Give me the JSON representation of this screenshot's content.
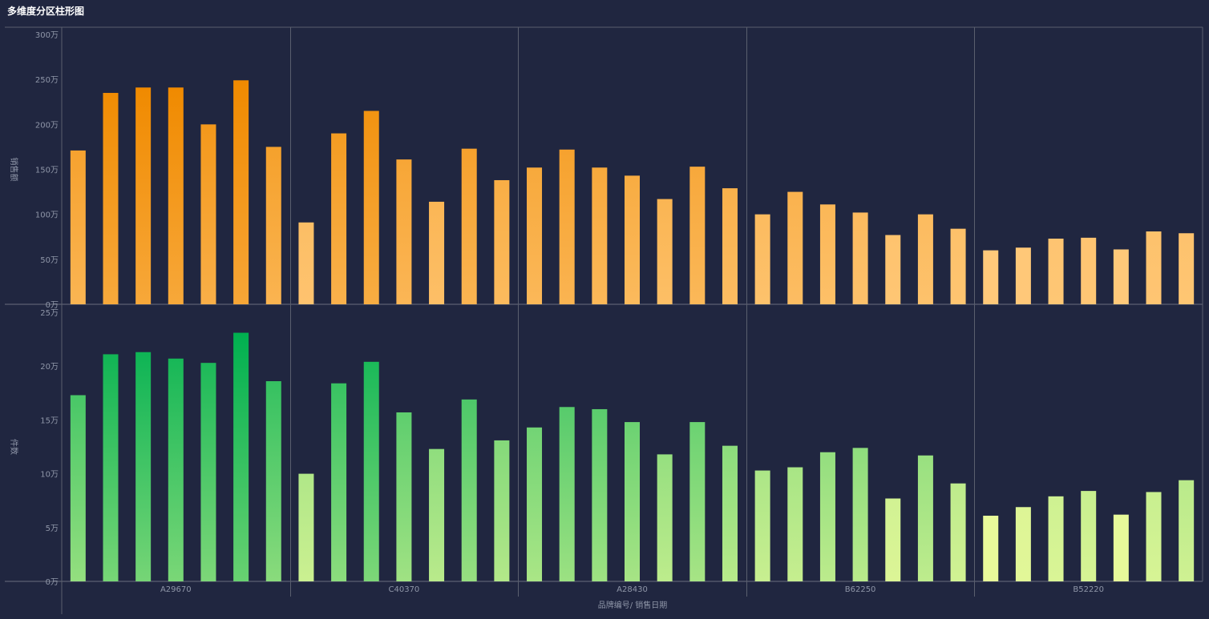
{
  "title": "多维度分区柱形图",
  "chart_data": {
    "type": "bar",
    "xlabel": "品牌编号/ 销售日期",
    "groups": [
      "A29670",
      "C40370",
      "A28430",
      "B62250",
      "B52220"
    ],
    "bars_per_group": 7,
    "panels": [
      {
        "ylabel": "销售额",
        "unit": "万",
        "ylim": [
          0,
          300
        ],
        "yticks": [
          0,
          50,
          100,
          150,
          200,
          250,
          300
        ],
        "ytick_labels": [
          "0万",
          "50万",
          "100万",
          "150万",
          "200万",
          "250万",
          "300万"
        ],
        "color_light": "#ffc97a",
        "color_dark": "#f08a00",
        "values": [
          [
            171,
            235,
            241,
            241,
            200,
            249,
            175
          ],
          [
            91,
            190,
            215,
            161,
            114,
            173,
            138
          ],
          [
            152,
            172,
            152,
            143,
            117,
            153,
            129
          ],
          [
            100,
            125,
            111,
            102,
            77,
            100,
            84
          ],
          [
            60,
            63,
            73,
            74,
            61,
            81,
            79
          ]
        ]
      },
      {
        "ylabel": "件数",
        "unit": "万",
        "ylim": [
          0,
          25
        ],
        "yticks": [
          0,
          5,
          10,
          15,
          20,
          25
        ],
        "ytick_labels": [
          "0万",
          "5万",
          "10万",
          "15万",
          "20万",
          "25万"
        ],
        "color_light": "#e8f99a",
        "color_dark": "#00b050",
        "values": [
          [
            17.3,
            21.1,
            21.3,
            20.7,
            20.3,
            23.1,
            18.6
          ],
          [
            10.0,
            18.4,
            20.4,
            15.7,
            12.3,
            16.9,
            13.1
          ],
          [
            14.3,
            16.2,
            16.0,
            14.8,
            11.8,
            14.8,
            12.6
          ],
          [
            10.3,
            10.6,
            12.0,
            12.4,
            7.7,
            11.7,
            9.1
          ],
          [
            6.1,
            6.9,
            7.9,
            8.4,
            6.2,
            8.3,
            9.4
          ]
        ]
      }
    ]
  }
}
